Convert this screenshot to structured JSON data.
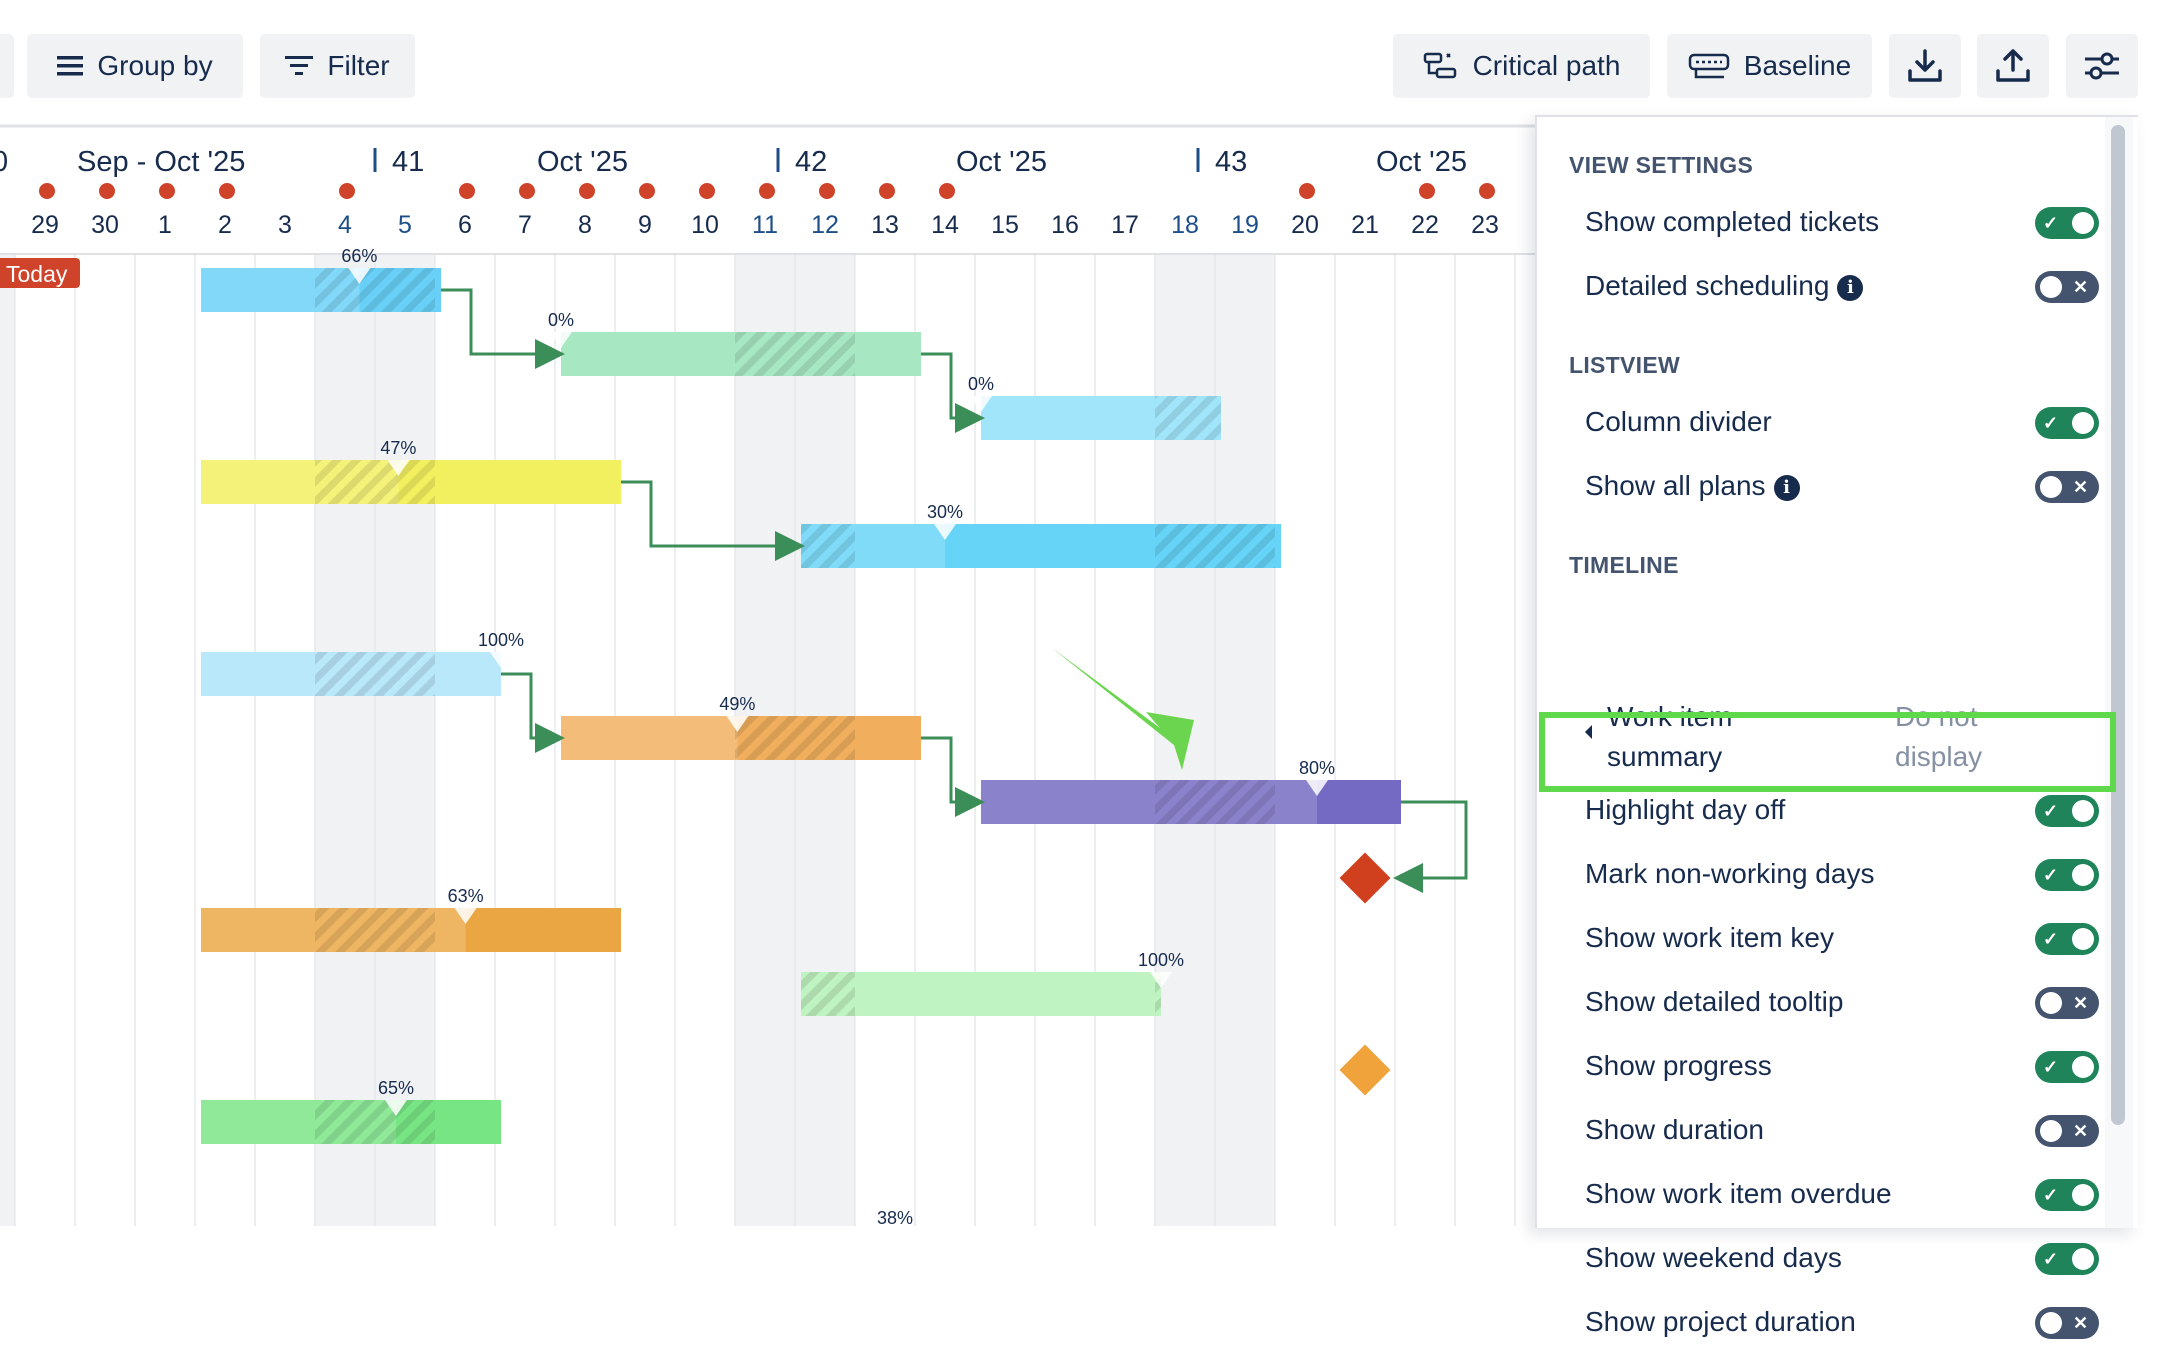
{
  "toolbar": {
    "group_by": "Group by",
    "filter": "Filter",
    "critical_path": "Critical path",
    "baseline": "Baseline"
  },
  "timeline": {
    "periods": [
      "Sep - Oct '25",
      "41",
      "Oct '25",
      "42",
      "Oct '25",
      "43",
      "Oct '25"
    ],
    "day_edge_left": "0",
    "days": [
      "29",
      "30",
      "1",
      "2",
      "3",
      "4",
      "5",
      "6",
      "7",
      "8",
      "9",
      "10",
      "11",
      "12",
      "13",
      "14",
      "15",
      "16",
      "17",
      "18",
      "19",
      "20",
      "21",
      "22",
      "23"
    ],
    "weekend_days": [
      "4",
      "5",
      "11",
      "12",
      "18",
      "19"
    ],
    "today_label": "Today",
    "marker_days": [
      "29",
      "30",
      "1",
      "2",
      "4",
      "6",
      "7",
      "8",
      "9",
      "10",
      "11",
      "12",
      "13",
      "14",
      "20",
      "22",
      "23"
    ]
  },
  "chart_data": {
    "type": "gantt",
    "bars": [
      {
        "start": "2",
        "end": "6",
        "progress_label": "66%",
        "color": "#60cdf6"
      },
      {
        "start": "8",
        "end": "14",
        "progress_label": "0%",
        "color": "#5fd592"
      },
      {
        "start": "15",
        "end": "19",
        "progress_label": "0%",
        "color": "#54d0f5"
      },
      {
        "start": "2",
        "end": "9",
        "progress_label": "47%",
        "color": "#f2ef58"
      },
      {
        "start": "12",
        "end": "20",
        "progress_label": "30%",
        "color": "#5fd2f6"
      },
      {
        "start": "2",
        "end": "7",
        "progress_label": "100%",
        "color": "#a8e2f9"
      },
      {
        "start": "8",
        "end": "14",
        "progress_label": "49%",
        "color": "#f0ab57"
      },
      {
        "start": "15",
        "end": "22",
        "progress_label": "80%",
        "color": "#6e62c0"
      },
      {
        "start": "2",
        "end": "9",
        "progress_label": "63%",
        "color": "#e9a23b"
      },
      {
        "start": "12",
        "end": "18",
        "progress_label": "100%",
        "color": "#aef0b1"
      },
      {
        "start": "2",
        "end": "7",
        "progress_label": "65%",
        "color": "#72e37e"
      },
      {
        "start": "",
        "end": "",
        "progress_label": "38%",
        "color": ""
      }
    ],
    "milestones": [
      {
        "day": "21",
        "color": "#d0401e"
      },
      {
        "day": "21",
        "color": "#f0a33b"
      }
    ],
    "dependencies": [
      [
        0,
        1
      ],
      [
        1,
        2
      ],
      [
        3,
        4
      ],
      [
        5,
        6
      ],
      [
        6,
        7
      ],
      [
        7,
        "m0"
      ]
    ]
  },
  "panel": {
    "view_settings": "VIEW SETTINGS",
    "show_completed": "Show completed tickets",
    "detailed_scheduling": "Detailed scheduling",
    "listview": "LISTVIEW",
    "column_divider": "Column divider",
    "show_all_plans": "Show all plans",
    "timeline": "TIMELINE",
    "summary_label_1": "Work item",
    "summary_label_2": "summary",
    "summary_value_1": "Do not",
    "summary_value_2": "display",
    "highlight_day_off": "Highlight day off",
    "mark_non_working": "Mark non-working days",
    "show_key": "Show work item key",
    "show_tooltip": "Show detailed tooltip",
    "show_progress": "Show progress",
    "show_duration": "Show duration",
    "show_overdue": "Show work item overdue",
    "show_weekend": "Show weekend days",
    "show_project_duration": "Show project duration",
    "toggle_states": {
      "show_completed": true,
      "detailed_scheduling": false,
      "column_divider": true,
      "show_all_plans": false,
      "highlight_day_off": true,
      "mark_non_working": true,
      "show_key": true,
      "show_tooltip": false,
      "show_progress": true,
      "show_duration": false,
      "show_overdue": true,
      "show_weekend": true,
      "show_project_duration": false
    }
  },
  "colors": {
    "accent_green": "#1f845a",
    "highlight": "#5fd84c",
    "dependency": "#3b8e58",
    "today": "#d0432b",
    "weekend_num": "#1d4e89"
  }
}
